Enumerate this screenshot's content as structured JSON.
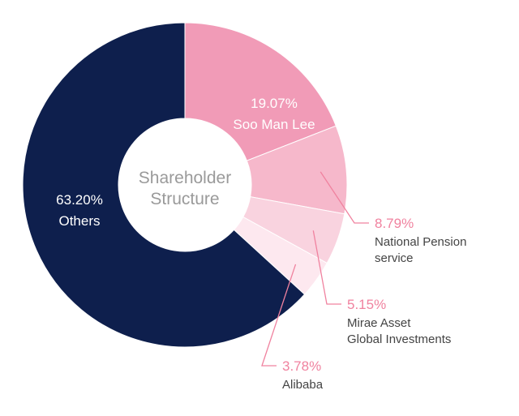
{
  "center_label": [
    "Shareholder",
    "Structure"
  ],
  "chart_data": {
    "type": "pie",
    "donut": true,
    "title": "",
    "slices": [
      {
        "name": "Soo Man Lee",
        "value": 19.07,
        "label": "19.07%",
        "label_lines": [
          "Soo Man Lee"
        ],
        "label_style": "inside",
        "color": "#f19bb7"
      },
      {
        "name": "National Pension service",
        "value": 8.79,
        "label": "8.79%",
        "label_lines": [
          "National Pension",
          "service"
        ],
        "label_style": "outside",
        "color": "#f6b8cb"
      },
      {
        "name": "Mirae Asset Global Investments",
        "value": 5.15,
        "label": "5.15%",
        "label_lines": [
          "Mirae Asset",
          "Global Investments"
        ],
        "label_style": "outside",
        "color": "#f9d3df"
      },
      {
        "name": "Alibaba",
        "value": 3.78,
        "label": "3.78%",
        "label_lines": [
          "Alibaba"
        ],
        "label_style": "outside",
        "color": "#fde8ef"
      },
      {
        "name": "Others",
        "value": 63.2,
        "label": "63.20%",
        "label_lines": [
          "Others"
        ],
        "label_style": "inside",
        "color": "#0e1f4d"
      }
    ],
    "accent_label_color": "#f0829f",
    "leader_color": "#f0829f"
  }
}
